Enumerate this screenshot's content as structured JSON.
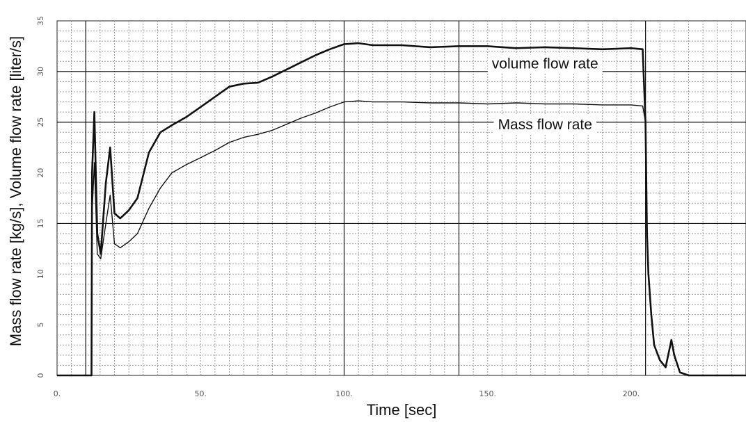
{
  "chart_data": {
    "type": "line",
    "xlabel": "Time [sec]",
    "ylabel": "Mass flow rate [kg/s], Volume flow rate [liter/s]",
    "xlim": [
      0,
      240
    ],
    "ylim": [
      0,
      35
    ],
    "x_ticks": [
      0,
      50,
      100,
      150,
      200
    ],
    "x_tick_labels": [
      "0.",
      "50.",
      "100.",
      "150.",
      "200."
    ],
    "y_ticks": [
      0,
      5,
      10,
      15,
      20,
      25,
      30,
      35
    ],
    "y_tick_labels": [
      "0",
      "5",
      "10",
      "15",
      "20",
      "25",
      "30",
      "35"
    ],
    "grid": true,
    "colors": {
      "grid_minor": "#9a9a9a",
      "grid_major": "#111111",
      "line": "#111111"
    },
    "series": [
      {
        "name": "volume flow rate",
        "x": [
          0,
          12,
          12.2,
          13,
          14,
          15.2,
          17,
          18.5,
          20,
          22,
          25,
          28,
          32,
          36,
          40,
          45,
          50,
          55,
          60,
          65,
          70,
          75,
          80,
          85,
          90,
          95,
          100,
          105,
          110,
          120,
          130,
          140,
          150,
          160,
          170,
          180,
          190,
          200,
          204,
          205,
          205.5,
          206,
          207,
          208,
          210,
          212,
          214,
          215,
          217,
          220,
          225,
          230,
          240
        ],
        "y": [
          0,
          0,
          20,
          26,
          14,
          12,
          19,
          22.5,
          16,
          15.5,
          16.3,
          17.5,
          22,
          24,
          24.7,
          25.5,
          26.5,
          27.5,
          28.5,
          28.8,
          28.9,
          29.5,
          30.2,
          30.9,
          31.6,
          32.2,
          32.7,
          32.8,
          32.6,
          32.6,
          32.4,
          32.5,
          32.5,
          32.3,
          32.4,
          32.3,
          32.2,
          32.3,
          32.2,
          25,
          14,
          10,
          6,
          3,
          1.5,
          0.8,
          3.5,
          2,
          0.3,
          0,
          0,
          0,
          0
        ]
      },
      {
        "name": "Mass flow rate",
        "x": [
          0,
          12,
          12.2,
          13,
          14,
          15.2,
          17,
          18.5,
          20,
          22,
          25,
          28,
          32,
          36,
          40,
          45,
          50,
          55,
          60,
          65,
          70,
          75,
          80,
          85,
          90,
          95,
          100,
          105,
          110,
          120,
          130,
          140,
          150,
          160,
          170,
          180,
          190,
          200,
          204,
          205,
          205.5,
          206,
          207,
          208,
          210,
          212,
          214,
          215,
          217,
          220,
          225,
          230,
          240
        ],
        "y": [
          0,
          0,
          16,
          21,
          12,
          11.5,
          15,
          17.8,
          13,
          12.6,
          13.2,
          14,
          16.5,
          18.5,
          20,
          20.8,
          21.5,
          22.2,
          23,
          23.5,
          23.8,
          24.2,
          24.8,
          25.4,
          25.9,
          26.5,
          27,
          27.1,
          27.0,
          27.0,
          26.9,
          26.9,
          26.8,
          26.9,
          26.8,
          26.8,
          26.7,
          26.7,
          26.6,
          25,
          14,
          10,
          6,
          3,
          1.5,
          0.8,
          3.5,
          2,
          0.3,
          0,
          0,
          0,
          0
        ]
      }
    ],
    "annotations": [
      {
        "text": "volume flow rate",
        "x": 170,
        "y": 30.3
      },
      {
        "text": "Mass flow rate",
        "x": 170,
        "y": 24.3
      }
    ]
  }
}
